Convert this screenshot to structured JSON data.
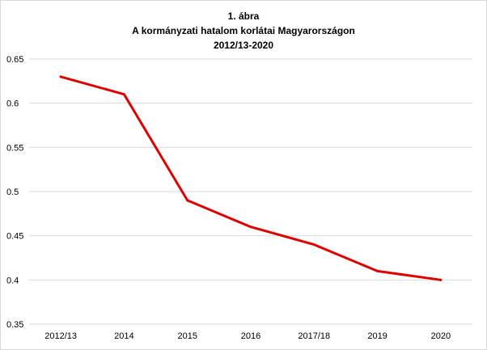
{
  "chart_data": {
    "type": "line",
    "title": "1. ábra",
    "subtitle": "A kormányzati hatalom korlátai Magyarországon",
    "subtitle2": "2012/13-2020",
    "categories": [
      "2012/13",
      "2014",
      "2015",
      "2016",
      "2017/18",
      "2019",
      "2020"
    ],
    "series": [
      {
        "values": [
          0.63,
          0.61,
          0.49,
          0.46,
          0.44,
          0.41,
          0.4
        ],
        "color": "#e00000"
      }
    ],
    "ylim": [
      0.35,
      0.65
    ],
    "yticks": [
      "0.35",
      "0.4",
      "0.45",
      "0.5",
      "0.55",
      "0.6",
      "0.65"
    ],
    "grid": true,
    "legend": "none",
    "xlabel": "",
    "ylabel": ""
  }
}
